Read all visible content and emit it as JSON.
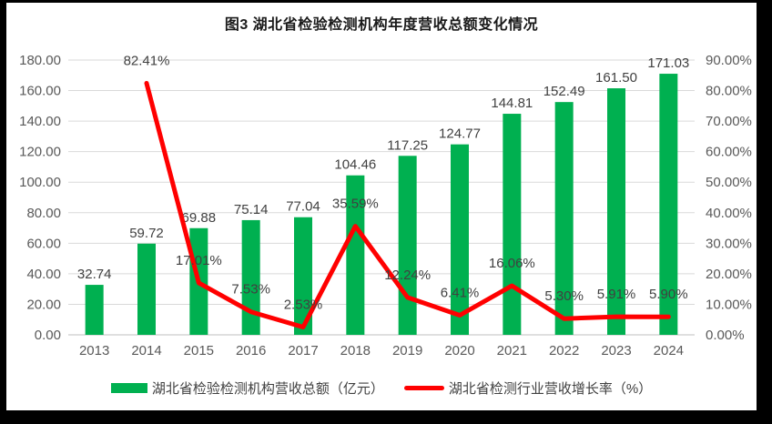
{
  "chart_data": {
    "type": "combo",
    "title": "图3 湖北省检验检测机构年度营收总额变化情况",
    "categories": [
      "2013",
      "2014",
      "2015",
      "2016",
      "2017",
      "2018",
      "2019",
      "2020",
      "2021",
      "2022",
      "2023",
      "2024"
    ],
    "series": [
      {
        "name": "湖北省检验检测机构营收总额（亿元）",
        "type": "bar",
        "axis": "left",
        "color": "#00B050",
        "values": [
          32.74,
          59.72,
          69.88,
          75.14,
          77.04,
          104.46,
          117.25,
          124.77,
          144.81,
          152.49,
          161.5,
          171.03
        ],
        "labels": [
          "32.74",
          "59.72",
          "69.88",
          "75.14",
          "77.04",
          "104.46",
          "117.25",
          "124.77",
          "144.81",
          "152.49",
          "161.50",
          "171.03"
        ]
      },
      {
        "name": "湖北省检测行业营收增长率（%）",
        "type": "line",
        "axis": "right",
        "color": "#FF0000",
        "values": [
          null,
          82.41,
          17.01,
          7.53,
          2.53,
          35.59,
          12.24,
          6.41,
          16.06,
          5.3,
          5.91,
          5.9
        ],
        "labels": [
          null,
          "82.41%",
          "17.01%",
          "7.53%",
          "2.53%",
          "35.59%",
          "12.24%",
          "6.41%",
          "16.06%",
          "5.30%",
          "5.91%",
          "5.90%"
        ]
      }
    ],
    "left_axis": {
      "min": 0,
      "max": 180,
      "step": 20,
      "tick_labels": [
        "0.00",
        "20.00",
        "40.00",
        "60.00",
        "80.00",
        "100.00",
        "120.00",
        "140.00",
        "160.00",
        "180.00"
      ]
    },
    "right_axis": {
      "min": 0,
      "max": 90,
      "step": 10,
      "tick_labels": [
        "0.00%",
        "10.00%",
        "20.00%",
        "30.00%",
        "40.00%",
        "50.00%",
        "60.00%",
        "70.00%",
        "80.00%",
        "90.00%"
      ]
    },
    "grid": true,
    "legend_position": "bottom"
  }
}
